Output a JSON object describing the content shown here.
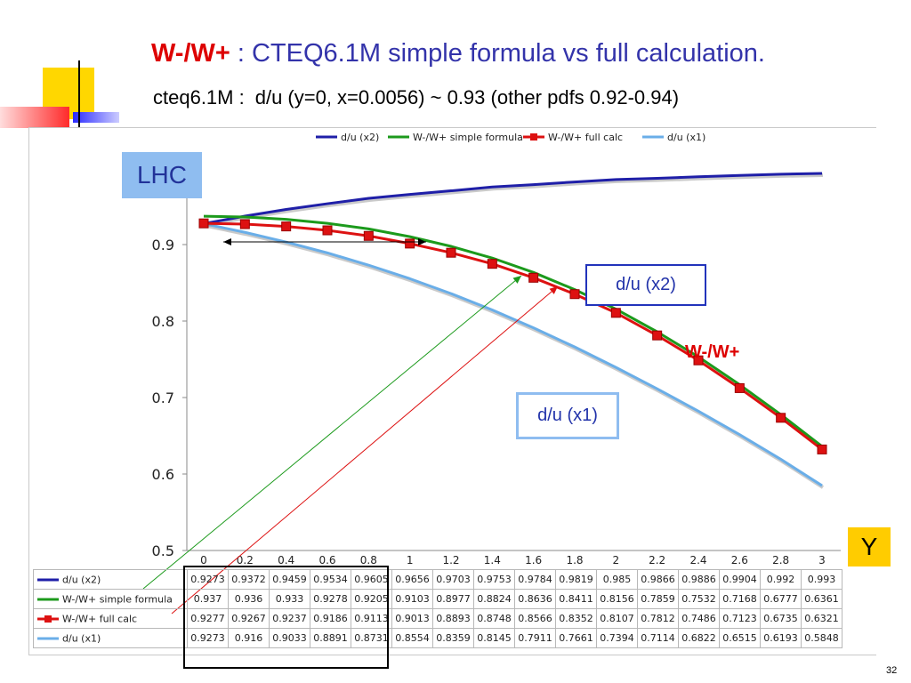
{
  "slide": {
    "title_prefix": "W-/W+",
    "title_rest": " : CTEQ6.1M simple formula vs full calculation.",
    "subtitle_left": "cteq6.1M :",
    "subtitle_right": "d/u (y=0, x=0.0056) ~ 0.93 (other pdfs 0.92-0.94)",
    "page_number": "32"
  },
  "callouts": {
    "lhc": "LHC",
    "du_x2": "d/u (x2)",
    "w_ratio": "W-/W+",
    "du_x1": "d/u (x1)",
    "y_label": "Y"
  },
  "colors": {
    "du_x2": "#1f1fa8",
    "simple_formula": "#1c9a1c",
    "full_calc": "#dd1111",
    "du_x1": "#6aaee8",
    "title_blue": "#3333aa",
    "title_red": "#dd0000",
    "lhc_bg": "#8fbdf0",
    "y_bg": "#ffcc00"
  },
  "chart_data": {
    "type": "line",
    "categories": [
      "0",
      "0.2",
      "0.4",
      "0.6",
      "0.8",
      "1",
      "1.2",
      "1.4",
      "1.6",
      "1.8",
      "2",
      "2.2",
      "2.4",
      "2.6",
      "2.8",
      "3"
    ],
    "x": [
      0,
      0.2,
      0.4,
      0.6,
      0.8,
      1,
      1.2,
      1.4,
      1.6,
      1.8,
      2,
      2.2,
      2.4,
      2.6,
      2.8,
      3
    ],
    "series": [
      {
        "name": "d/u (x2)",
        "values": [
          "0.9273",
          "0.9372",
          "0.9459",
          "0.9534",
          "0.9605",
          "0.9656",
          "0.9703",
          "0.9753",
          "0.9784",
          "0.9819",
          "0.985",
          "0.9866",
          "0.9886",
          "0.9904",
          "0.992",
          "0.993"
        ],
        "color": "#1f1fa8",
        "marker": "none"
      },
      {
        "name": "W-/W+ simple formula",
        "values": [
          "0.937",
          "0.936",
          "0.933",
          "0.9278",
          "0.9205",
          "0.9103",
          "0.8977",
          "0.8824",
          "0.8636",
          "0.8411",
          "0.8156",
          "0.7859",
          "0.7532",
          "0.7168",
          "0.6777",
          "0.6361"
        ],
        "color": "#1c9a1c",
        "marker": "none"
      },
      {
        "name": "W-/W+ full calc",
        "values": [
          "0.9277",
          "0.9267",
          "0.9237",
          "0.9186",
          "0.9113",
          "0.9013",
          "0.8893",
          "0.8748",
          "0.8566",
          "0.8352",
          "0.8107",
          "0.7812",
          "0.7486",
          "0.7123",
          "0.6735",
          "0.6321"
        ],
        "color": "#dd1111",
        "marker": "square"
      },
      {
        "name": "d/u (x1)",
        "values": [
          "0.9273",
          "0.916",
          "0.9033",
          "0.8891",
          "0.8731",
          "0.8554",
          "0.8359",
          "0.8145",
          "0.7911",
          "0.7661",
          "0.7394",
          "0.7114",
          "0.6822",
          "0.6515",
          "0.6193",
          "0.5848"
        ],
        "color": "#6aaee8",
        "marker": "none"
      }
    ],
    "ylim": [
      0.5,
      1.0
    ],
    "yticks": [
      "0.5",
      "0.6",
      "0.7",
      "0.8",
      "0.9"
    ],
    "grid": false,
    "legend": "top",
    "data_table": true
  }
}
